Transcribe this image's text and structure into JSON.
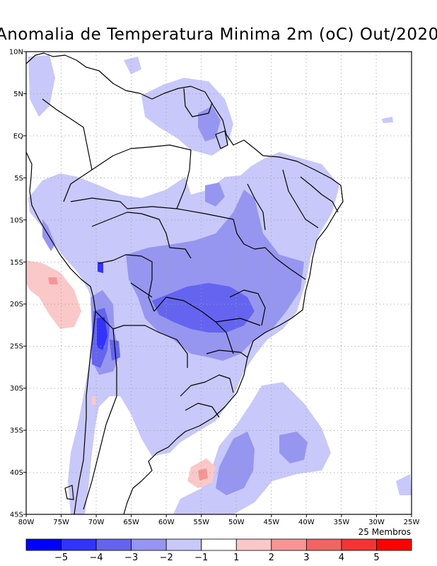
{
  "title": "Anomalia de Temperatura Minima 2m (oC) Out/2020",
  "members_label": "25 Membros",
  "map": {
    "lon_range": [
      -80,
      -25
    ],
    "lat_range": [
      -45,
      10
    ],
    "lat_ticks": [
      {
        "value": 10,
        "label": "10N"
      },
      {
        "value": 5,
        "label": "5N"
      },
      {
        "value": 0,
        "label": "EQ"
      },
      {
        "value": -5,
        "label": "5S"
      },
      {
        "value": -10,
        "label": "10S"
      },
      {
        "value": -15,
        "label": "15S"
      },
      {
        "value": -20,
        "label": "20S"
      },
      {
        "value": -25,
        "label": "25S"
      },
      {
        "value": -30,
        "label": "30S"
      },
      {
        "value": -35,
        "label": "35S"
      },
      {
        "value": -40,
        "label": "40S"
      },
      {
        "value": -45,
        "label": "45S"
      }
    ],
    "lon_ticks": [
      {
        "value": -80,
        "label": "80W"
      },
      {
        "value": -75,
        "label": "75W"
      },
      {
        "value": -70,
        "label": "70W"
      },
      {
        "value": -65,
        "label": "65W"
      },
      {
        "value": -60,
        "label": "60W"
      },
      {
        "value": -55,
        "label": "55W"
      },
      {
        "value": -50,
        "label": "50W"
      },
      {
        "value": -45,
        "label": "45W"
      },
      {
        "value": -40,
        "label": "40W"
      },
      {
        "value": -35,
        "label": "35W"
      },
      {
        "value": -30,
        "label": "30W"
      },
      {
        "value": -25,
        "label": "25W"
      }
    ]
  },
  "legend": {
    "bins": [
      {
        "color": "#0000ff"
      },
      {
        "color": "#3333ff"
      },
      {
        "color": "#6464f0"
      },
      {
        "color": "#9696f0"
      },
      {
        "color": "#c8c8fa"
      },
      {
        "color": "#ffffff"
      },
      {
        "color": "#fac8c8"
      },
      {
        "color": "#f59696"
      },
      {
        "color": "#f06464"
      },
      {
        "color": "#f53333"
      },
      {
        "color": "#ff0000"
      }
    ],
    "labels": [
      "-5",
      "-4",
      "-3",
      "-2",
      "-1",
      "1",
      "2",
      "3",
      "4",
      "5"
    ]
  },
  "colors": {
    "coast": "#000000",
    "grid": "#a0a0a0"
  }
}
